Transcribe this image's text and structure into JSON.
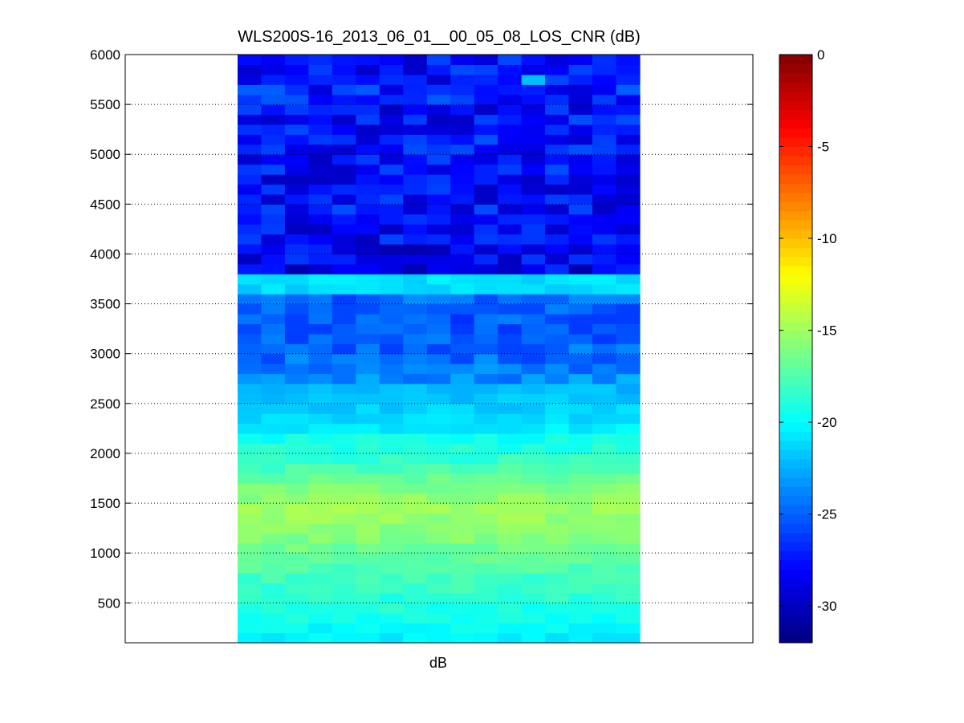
{
  "chart_data": {
    "type": "heatmap",
    "title": "WLS200S-16_2013_06_01__00_05_08_LOS_CNR (dB)",
    "xlabel": "dB",
    "ylabel": "",
    "ylim": [
      100,
      6000
    ],
    "yticks": [
      500,
      1000,
      1500,
      2000,
      2500,
      3000,
      3500,
      4000,
      4500,
      5000,
      5500,
      6000
    ],
    "grid": "horizontal-dotted",
    "colormap": "jet",
    "colorbar": {
      "range": [
        -32,
        0
      ],
      "ticks": [
        0,
        -5,
        -10,
        -15,
        -20,
        -25,
        -30
      ]
    },
    "columns": 17,
    "rows_y": [
      100,
      200,
      300,
      400,
      500,
      600,
      700,
      800,
      900,
      1000,
      1100,
      1200,
      1300,
      1400,
      1500,
      1600,
      1700,
      1800,
      1900,
      2000,
      2100,
      2200,
      2300,
      2400,
      2500,
      2600,
      2700,
      2800,
      2900,
      3000,
      3100,
      3200,
      3300,
      3400,
      3500,
      3600,
      3700,
      3800,
      3900,
      4000,
      4100,
      4200,
      4300,
      4400,
      4500,
      4600,
      4700,
      4800,
      4900,
      5000,
      5100,
      5200,
      5300,
      5400,
      5500,
      5600,
      5700,
      5800,
      5900
    ],
    "row_mean_db": [
      -20.5,
      -20,
      -19.5,
      -19,
      -18.7,
      -18.3,
      -18,
      -17.5,
      -17,
      -16.5,
      -16,
      -15.5,
      -15.3,
      -15.2,
      -15.5,
      -16,
      -16.8,
      -17.8,
      -18.5,
      -19,
      -19.5,
      -20.5,
      -21,
      -21.5,
      -21.8,
      -22.3,
      -23.5,
      -24.2,
      -24.6,
      -24.8,
      -25,
      -25.3,
      -25.3,
      -25.1,
      -24.8,
      -21.2,
      -21.0,
      -28.5,
      -28.2,
      -28.6,
      -28.0,
      -27.8,
      -27.2,
      -27.5,
      -27.6,
      -27.7,
      -27.8,
      -27.6,
      -27.9,
      -27.5,
      -27.3,
      -27.6,
      -27.7,
      -27.9,
      -27.2,
      -27.1,
      -27.6,
      -27.5,
      -27.8
    ],
    "sample_values": [
      {
        "y": 5700,
        "col": 12,
        "value": -22
      }
    ]
  }
}
